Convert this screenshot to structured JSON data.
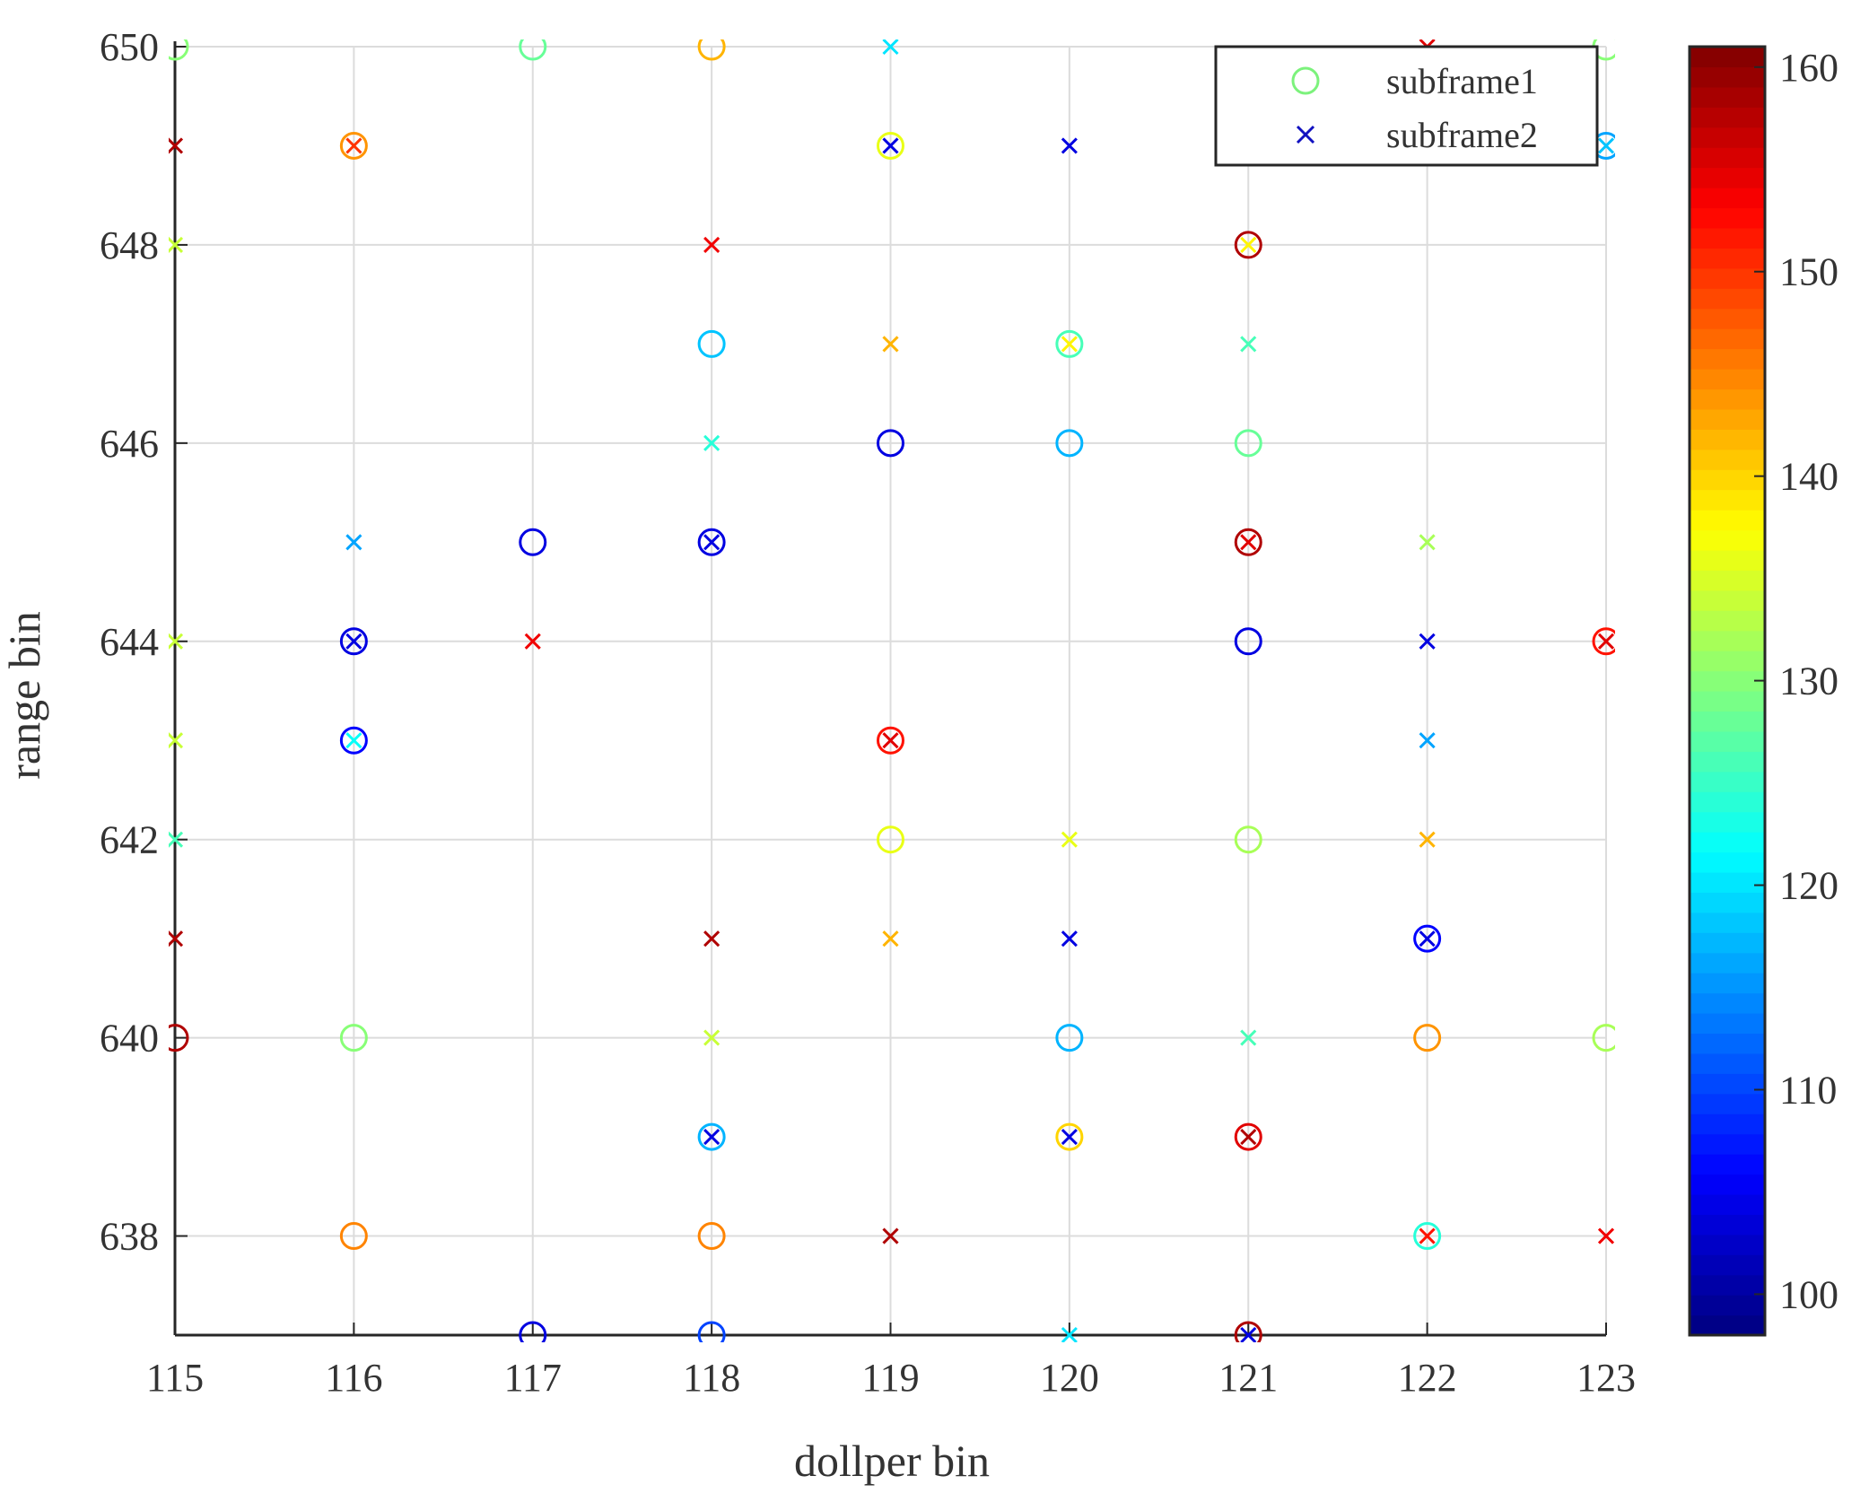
{
  "chart_data": {
    "type": "scatter",
    "xlabel": "dollper bin",
    "ylabel": "range bin",
    "xlim": [
      115,
      123
    ],
    "ylim": [
      637,
      650
    ],
    "xticks": [
      115,
      116,
      117,
      118,
      119,
      120,
      121,
      122,
      123
    ],
    "yticks": [
      638,
      640,
      642,
      644,
      646,
      648,
      650
    ],
    "grid": true,
    "legend": {
      "placement": "top-right"
    },
    "colorbar": {
      "colormap": "jet",
      "range": [
        98,
        161
      ],
      "ticks": [
        100,
        110,
        120,
        130,
        140,
        150,
        160
      ]
    },
    "series": [
      {
        "name": "subframe1",
        "marker": "circle",
        "legend_color": "#7cf27c",
        "points": [
          {
            "x": 115,
            "y": 650,
            "c": 130
          },
          {
            "x": 117,
            "y": 650,
            "c": 128
          },
          {
            "x": 118,
            "y": 650,
            "c": 142
          },
          {
            "x": 123,
            "y": 650,
            "c": 130
          },
          {
            "x": 116,
            "y": 649,
            "c": 144
          },
          {
            "x": 119,
            "y": 649,
            "c": 136
          },
          {
            "x": 123,
            "y": 649,
            "c": 116
          },
          {
            "x": 121,
            "y": 648,
            "c": 158
          },
          {
            "x": 118,
            "y": 647,
            "c": 118
          },
          {
            "x": 120,
            "y": 647,
            "c": 126
          },
          {
            "x": 119,
            "y": 646,
            "c": 104
          },
          {
            "x": 120,
            "y": 646,
            "c": 117
          },
          {
            "x": 121,
            "y": 646,
            "c": 128
          },
          {
            "x": 117,
            "y": 645,
            "c": 104
          },
          {
            "x": 118,
            "y": 645,
            "c": 104
          },
          {
            "x": 121,
            "y": 645,
            "c": 158
          },
          {
            "x": 116,
            "y": 644,
            "c": 104
          },
          {
            "x": 121,
            "y": 644,
            "c": 104
          },
          {
            "x": 123,
            "y": 644,
            "c": 152
          },
          {
            "x": 116,
            "y": 643,
            "c": 106
          },
          {
            "x": 119,
            "y": 643,
            "c": 152
          },
          {
            "x": 119,
            "y": 642,
            "c": 136
          },
          {
            "x": 121,
            "y": 642,
            "c": 132
          },
          {
            "x": 122,
            "y": 641,
            "c": 106
          },
          {
            "x": 115,
            "y": 640,
            "c": 158
          },
          {
            "x": 116,
            "y": 640,
            "c": 130
          },
          {
            "x": 120,
            "y": 640,
            "c": 117
          },
          {
            "x": 122,
            "y": 640,
            "c": 144
          },
          {
            "x": 123,
            "y": 640,
            "c": 132
          },
          {
            "x": 118,
            "y": 639,
            "c": 117
          },
          {
            "x": 120,
            "y": 639,
            "c": 140
          },
          {
            "x": 121,
            "y": 639,
            "c": 155
          },
          {
            "x": 116,
            "y": 638,
            "c": 145
          },
          {
            "x": 118,
            "y": 638,
            "c": 145
          },
          {
            "x": 122,
            "y": 638,
            "c": 124
          },
          {
            "x": 117,
            "y": 637,
            "c": 104
          },
          {
            "x": 118,
            "y": 637,
            "c": 110
          },
          {
            "x": 121,
            "y": 637,
            "c": 158
          }
        ]
      },
      {
        "name": "subframe2",
        "marker": "x",
        "legend_color": "#1010c0",
        "points": [
          {
            "x": 119,
            "y": 650,
            "c": 120
          },
          {
            "x": 122,
            "y": 650,
            "c": 155
          },
          {
            "x": 115,
            "y": 649,
            "c": 158
          },
          {
            "x": 116,
            "y": 649,
            "c": 150
          },
          {
            "x": 119,
            "y": 649,
            "c": 104
          },
          {
            "x": 120,
            "y": 649,
            "c": 104
          },
          {
            "x": 123,
            "y": 649,
            "c": 118
          },
          {
            "x": 115,
            "y": 648,
            "c": 134
          },
          {
            "x": 118,
            "y": 648,
            "c": 154
          },
          {
            "x": 121,
            "y": 648,
            "c": 138
          },
          {
            "x": 119,
            "y": 647,
            "c": 142
          },
          {
            "x": 120,
            "y": 647,
            "c": 138
          },
          {
            "x": 121,
            "y": 647,
            "c": 126
          },
          {
            "x": 118,
            "y": 646,
            "c": 124
          },
          {
            "x": 116,
            "y": 645,
            "c": 116
          },
          {
            "x": 118,
            "y": 645,
            "c": 104
          },
          {
            "x": 121,
            "y": 645,
            "c": 155
          },
          {
            "x": 122,
            "y": 645,
            "c": 132
          },
          {
            "x": 115,
            "y": 644,
            "c": 134
          },
          {
            "x": 116,
            "y": 644,
            "c": 104
          },
          {
            "x": 117,
            "y": 644,
            "c": 154
          },
          {
            "x": 122,
            "y": 644,
            "c": 104
          },
          {
            "x": 123,
            "y": 644,
            "c": 155
          },
          {
            "x": 115,
            "y": 643,
            "c": 134
          },
          {
            "x": 116,
            "y": 643,
            "c": 122
          },
          {
            "x": 119,
            "y": 643,
            "c": 155
          },
          {
            "x": 122,
            "y": 643,
            "c": 116
          },
          {
            "x": 115,
            "y": 642,
            "c": 126
          },
          {
            "x": 120,
            "y": 642,
            "c": 136
          },
          {
            "x": 122,
            "y": 642,
            "c": 142
          },
          {
            "x": 115,
            "y": 641,
            "c": 158
          },
          {
            "x": 118,
            "y": 641,
            "c": 158
          },
          {
            "x": 119,
            "y": 641,
            "c": 142
          },
          {
            "x": 120,
            "y": 641,
            "c": 104
          },
          {
            "x": 122,
            "y": 641,
            "c": 104
          },
          {
            "x": 118,
            "y": 640,
            "c": 134
          },
          {
            "x": 121,
            "y": 640,
            "c": 126
          },
          {
            "x": 118,
            "y": 639,
            "c": 104
          },
          {
            "x": 120,
            "y": 639,
            "c": 104
          },
          {
            "x": 121,
            "y": 639,
            "c": 158
          },
          {
            "x": 119,
            "y": 638,
            "c": 158
          },
          {
            "x": 122,
            "y": 638,
            "c": 152
          },
          {
            "x": 123,
            "y": 638,
            "c": 154
          },
          {
            "x": 120,
            "y": 637,
            "c": 120
          },
          {
            "x": 121,
            "y": 637,
            "c": 104
          }
        ]
      }
    ]
  }
}
